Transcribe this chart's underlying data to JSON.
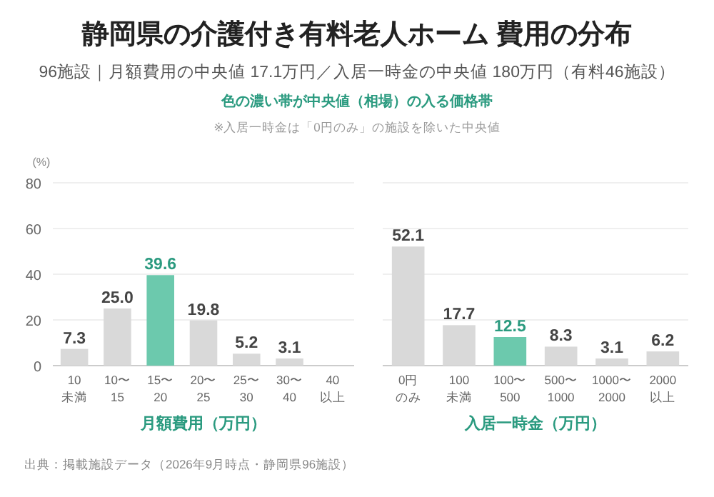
{
  "chart_data": [
    {
      "type": "bar",
      "title": "静岡県の介護付き有料老人ホーム 費用の分布",
      "subtitle": "96施設｜月額費用の中央値 17.1万円／入居一時金の中央値 180万円（有料46施設）",
      "annotations": [
        "色の濃い帯が中央値（相場）の入る価格帯",
        "※入居一時金は「0円のみ」の施設を除いた中央値",
        "出典：掲載施設データ（2026年9月時点・静岡県96施設）"
      ],
      "categories": [
        "10\n未満",
        "10〜\n15",
        "15〜\n20",
        "20〜\n25",
        "25〜\n30",
        "30〜\n40",
        "40\n以上"
      ],
      "values": [
        7.3,
        25.0,
        39.6,
        19.8,
        5.2,
        3.1,
        0
      ],
      "value_labels": [
        "7.3",
        "25.0",
        "39.6",
        "19.8",
        "5.2",
        "3.1",
        null
      ],
      "colors": [
        "#d9d9d9",
        "#d9d9d9",
        "#6cc9ad",
        "#d9d9d9",
        "#d9d9d9",
        "#d9d9d9",
        "#d9d9d9"
      ],
      "xlabel": "月額費用（万円）",
      "ylabel": "(%)",
      "ylim": [
        0,
        80
      ],
      "yticks": [
        0,
        20,
        40,
        60,
        80
      ],
      "grid": "y"
    },
    {
      "type": "bar",
      "categories": [
        "0円のみ",
        "100\n未満",
        "100〜\n500",
        "500〜\n1000",
        "1000〜\n2000",
        "2000\n以上"
      ],
      "values": [
        52.1,
        17.7,
        12.5,
        8.3,
        3.1,
        6.2
      ],
      "value_labels": [
        "52.1",
        "17.7",
        "12.5",
        "8.3",
        "3.1",
        "6.2"
      ],
      "colors": [
        "#d9d9d9",
        "#d9d9d9",
        "#6cc9ad",
        "#d9d9d9",
        "#d9d9d9",
        "#d9d9d9"
      ],
      "xlabel": "入居一時金（万円）",
      "ylim": [
        0,
        80
      ],
      "yticks": [
        0,
        20,
        40,
        60,
        80
      ],
      "grid": "y",
      "tick_labels": "x"
    }
  ]
}
